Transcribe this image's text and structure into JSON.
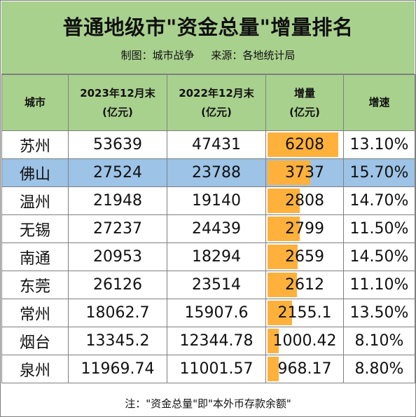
{
  "title": "普通地级市\"资金总量\"增量排名",
  "subtitle": "制图：城市战争     来源：各地统计局",
  "chart_data": {
    "type": "table",
    "columns": [
      {
        "line1": "城市",
        "line2": ""
      },
      {
        "line1": "2023年12月末",
        "line2": "(亿元)"
      },
      {
        "line1": "2022年12月末",
        "line2": "(亿元)"
      },
      {
        "line1": "增量",
        "line2": "(亿元)"
      },
      {
        "line1": "增速",
        "line2": ""
      }
    ],
    "rows": [
      {
        "city": "苏州",
        "y2023": "53639",
        "y2022": "47431",
        "increase": "6208",
        "growth": "13.10%",
        "increase_value": 6208
      },
      {
        "city": "佛山",
        "y2023": "27524",
        "y2022": "23788",
        "increase": "3737",
        "growth": "15.70%",
        "increase_value": 3737,
        "highlight": true
      },
      {
        "city": "温州",
        "y2023": "21948",
        "y2022": "19140",
        "increase": "2808",
        "growth": "14.70%",
        "increase_value": 2808
      },
      {
        "city": "无锡",
        "y2023": "27237",
        "y2022": "24439",
        "increase": "2799",
        "growth": "11.50%",
        "increase_value": 2799
      },
      {
        "city": "南通",
        "y2023": "20953",
        "y2022": "18294",
        "increase": "2659",
        "growth": "14.50%",
        "increase_value": 2659
      },
      {
        "city": "东莞",
        "y2023": "26126",
        "y2022": "23514",
        "increase": "2612",
        "growth": "11.10%",
        "increase_value": 2612
      },
      {
        "city": "常州",
        "y2023": "18062.7",
        "y2022": "15907.6",
        "increase": "2155.1",
        "growth": "13.50%",
        "increase_value": 2155.1
      },
      {
        "city": "烟台",
        "y2023": "13345.2",
        "y2022": "12344.78",
        "increase": "1000.42",
        "growth": "8.10%",
        "increase_value": 1000.42
      },
      {
        "city": "泉州",
        "y2023": "11969.74",
        "y2022": "11001.57",
        "increase": "968.17",
        "growth": "8.80%",
        "increase_value": 968.17
      }
    ],
    "data_bar_color": "#ffb13b",
    "highlight_color": "#9dc3e6",
    "header_color": "#a9d18e"
  },
  "note": "注：\"资金总量\"即\"本外币存款余额\""
}
